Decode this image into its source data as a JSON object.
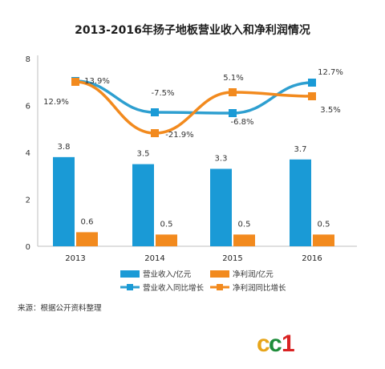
{
  "chart_data": {
    "type": "bar+line",
    "title": "2013-2016年扬子地板营业收入和净利润情况",
    "categories": [
      "2013",
      "2014",
      "2015",
      "2016"
    ],
    "ylim": [
      0,
      8
    ],
    "yticks": [
      0,
      2,
      4,
      6,
      8
    ],
    "grid": false,
    "bar_series": [
      {
        "name": "营业收入/亿元",
        "color": "#1a9ad6",
        "values": [
          3.8,
          3.5,
          3.3,
          3.7
        ],
        "labels": [
          "3.8",
          "3.5",
          "3.3",
          "3.7"
        ]
      },
      {
        "name": "净利润/亿元",
        "color": "#f28a1e",
        "values": [
          0.6,
          0.5,
          0.5,
          0.5
        ],
        "labels": [
          "0.6",
          "0.5",
          "0.5",
          "0.5"
        ]
      }
    ],
    "line_series": [
      {
        "name": "营业收入同比增长",
        "color": "#2e9fd0",
        "marker_color": "#1a9ad6",
        "labels": [
          "13.9%",
          "-7.5%",
          "-6.8%",
          "12.7%"
        ]
      },
      {
        "name": "净利润同比增长",
        "color": "#f28a1e",
        "marker_color": "#f28a1e",
        "labels": [
          "12.9%",
          "-21.9%",
          "5.1%",
          "3.5%"
        ]
      }
    ],
    "legend_position": "bottom"
  },
  "source": "来源：根据公开资料整理",
  "watermark": "cc1"
}
